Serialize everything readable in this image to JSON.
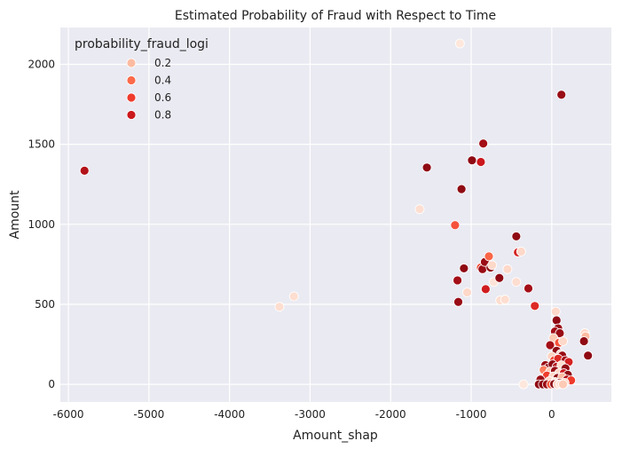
{
  "chart_data": {
    "type": "scatter",
    "title": "Estimated Probability of Fraud with Respect to Time",
    "xlabel": "Amount_shap",
    "ylabel": "Amount",
    "xlim": [
      -6100,
      740
    ],
    "ylim": [
      -110,
      2230
    ],
    "xticks": [
      -6000,
      -5000,
      -4000,
      -3000,
      -2000,
      -1000,
      0
    ],
    "yticks": [
      0,
      500,
      1000,
      1500,
      2000
    ],
    "grid": true,
    "legend": {
      "title": "probability_fraud_logi",
      "placement": "top-left",
      "entries": [
        {
          "label": "0.2",
          "value": 0.2
        },
        {
          "label": "0.4",
          "value": 0.4
        },
        {
          "label": "0.6",
          "value": 0.6
        },
        {
          "label": "0.8",
          "value": 0.8
        }
      ]
    },
    "colors": {
      "background": "#eaeaf2",
      "grid": "#ffffff",
      "marker_edge": "#ffffff",
      "scale_low": "#fff5f0",
      "scale_high": "#67000d"
    },
    "points": [
      {
        "x": -5800,
        "y": 1335,
        "p": 0.85
      },
      {
        "x": -3380,
        "y": 485,
        "p": 0.08
      },
      {
        "x": -3200,
        "y": 550,
        "p": 0.08
      },
      {
        "x": -1640,
        "y": 1095,
        "p": 0.08
      },
      {
        "x": -1550,
        "y": 1355,
        "p": 0.92
      },
      {
        "x": -1200,
        "y": 995,
        "p": 0.5
      },
      {
        "x": -1140,
        "y": 2130,
        "p": 0.05
      },
      {
        "x": -1120,
        "y": 1220,
        "p": 0.92
      },
      {
        "x": -1170,
        "y": 650,
        "p": 0.88
      },
      {
        "x": -1160,
        "y": 515,
        "p": 0.9
      },
      {
        "x": -1090,
        "y": 725,
        "p": 0.92
      },
      {
        "x": -1050,
        "y": 575,
        "p": 0.1
      },
      {
        "x": -990,
        "y": 1400,
        "p": 0.92
      },
      {
        "x": -880,
        "y": 1390,
        "p": 0.8
      },
      {
        "x": -850,
        "y": 1505,
        "p": 0.88
      },
      {
        "x": -880,
        "y": 730,
        "p": 0.55
      },
      {
        "x": -860,
        "y": 720,
        "p": 0.9
      },
      {
        "x": -830,
        "y": 765,
        "p": 0.9
      },
      {
        "x": -820,
        "y": 595,
        "p": 0.78
      },
      {
        "x": -780,
        "y": 800,
        "p": 0.42
      },
      {
        "x": -760,
        "y": 730,
        "p": 0.92
      },
      {
        "x": -740,
        "y": 745,
        "p": 0.1
      },
      {
        "x": -720,
        "y": 640,
        "p": 0.06
      },
      {
        "x": -650,
        "y": 665,
        "p": 0.92
      },
      {
        "x": -640,
        "y": 525,
        "p": 0.08
      },
      {
        "x": -580,
        "y": 530,
        "p": 0.08
      },
      {
        "x": -550,
        "y": 720,
        "p": 0.1
      },
      {
        "x": -440,
        "y": 925,
        "p": 0.92
      },
      {
        "x": -420,
        "y": 825,
        "p": 0.75
      },
      {
        "x": -380,
        "y": 830,
        "p": 0.1
      },
      {
        "x": -440,
        "y": 640,
        "p": 0.08
      },
      {
        "x": -290,
        "y": 600,
        "p": 0.88
      },
      {
        "x": -210,
        "y": 490,
        "p": 0.7
      },
      {
        "x": 120,
        "y": 1810,
        "p": 0.9
      },
      {
        "x": 50,
        "y": 455,
        "p": 0.1
      },
      {
        "x": 60,
        "y": 400,
        "p": 0.92
      },
      {
        "x": 80,
        "y": 350,
        "p": 0.9
      },
      {
        "x": 40,
        "y": 330,
        "p": 0.88
      },
      {
        "x": 100,
        "y": 320,
        "p": 0.9
      },
      {
        "x": 410,
        "y": 320,
        "p": 0.1
      },
      {
        "x": 420,
        "y": 300,
        "p": 0.2
      },
      {
        "x": 400,
        "y": 270,
        "p": 0.92
      },
      {
        "x": 20,
        "y": 290,
        "p": 0.15
      },
      {
        "x": 90,
        "y": 260,
        "p": 0.5
      },
      {
        "x": -20,
        "y": 245,
        "p": 0.88
      },
      {
        "x": 140,
        "y": 270,
        "p": 0.1
      },
      {
        "x": 60,
        "y": 210,
        "p": 0.92
      },
      {
        "x": 110,
        "y": 190,
        "p": 0.1
      },
      {
        "x": 0,
        "y": 175,
        "p": 0.12
      },
      {
        "x": 130,
        "y": 180,
        "p": 0.9
      },
      {
        "x": 450,
        "y": 180,
        "p": 0.92
      },
      {
        "x": 30,
        "y": 150,
        "p": 0.55
      },
      {
        "x": 80,
        "y": 160,
        "p": 0.7
      },
      {
        "x": 170,
        "y": 150,
        "p": 0.88
      },
      {
        "x": 210,
        "y": 140,
        "p": 0.75
      },
      {
        "x": -80,
        "y": 120,
        "p": 0.9
      },
      {
        "x": -40,
        "y": 105,
        "p": 0.92
      },
      {
        "x": 10,
        "y": 125,
        "p": 0.92
      },
      {
        "x": 60,
        "y": 110,
        "p": 0.85
      },
      {
        "x": 120,
        "y": 120,
        "p": 0.08
      },
      {
        "x": 170,
        "y": 100,
        "p": 0.92
      },
      {
        "x": -100,
        "y": 90,
        "p": 0.35
      },
      {
        "x": -20,
        "y": 80,
        "p": 0.15
      },
      {
        "x": 40,
        "y": 85,
        "p": 0.9
      },
      {
        "x": 90,
        "y": 70,
        "p": 0.1
      },
      {
        "x": 150,
        "y": 70,
        "p": 0.8
      },
      {
        "x": 200,
        "y": 60,
        "p": 0.92
      },
      {
        "x": -60,
        "y": 55,
        "p": 0.6
      },
      {
        "x": 20,
        "y": 50,
        "p": 0.1
      },
      {
        "x": 70,
        "y": 40,
        "p": 0.92
      },
      {
        "x": 130,
        "y": 45,
        "p": 0.2
      },
      {
        "x": 190,
        "y": 30,
        "p": 0.85
      },
      {
        "x": 240,
        "y": 25,
        "p": 0.6
      },
      {
        "x": -140,
        "y": 30,
        "p": 0.9
      },
      {
        "x": -30,
        "y": 20,
        "p": 0.1
      },
      {
        "x": 40,
        "y": 15,
        "p": 0.05
      },
      {
        "x": 100,
        "y": 10,
        "p": 0.92
      },
      {
        "x": 160,
        "y": 10,
        "p": 0.1
      },
      {
        "x": -160,
        "y": 0,
        "p": 0.92
      },
      {
        "x": -110,
        "y": 0,
        "p": 0.92
      },
      {
        "x": -60,
        "y": 0,
        "p": 0.9
      },
      {
        "x": -10,
        "y": 0,
        "p": 0.45
      },
      {
        "x": 30,
        "y": 2,
        "p": 0.92
      },
      {
        "x": 70,
        "y": 0,
        "p": 0.1
      },
      {
        "x": 110,
        "y": 2,
        "p": 0.08
      },
      {
        "x": 140,
        "y": 0,
        "p": 0.15
      },
      {
        "x": -350,
        "y": 0,
        "p": 0.05
      }
    ]
  }
}
